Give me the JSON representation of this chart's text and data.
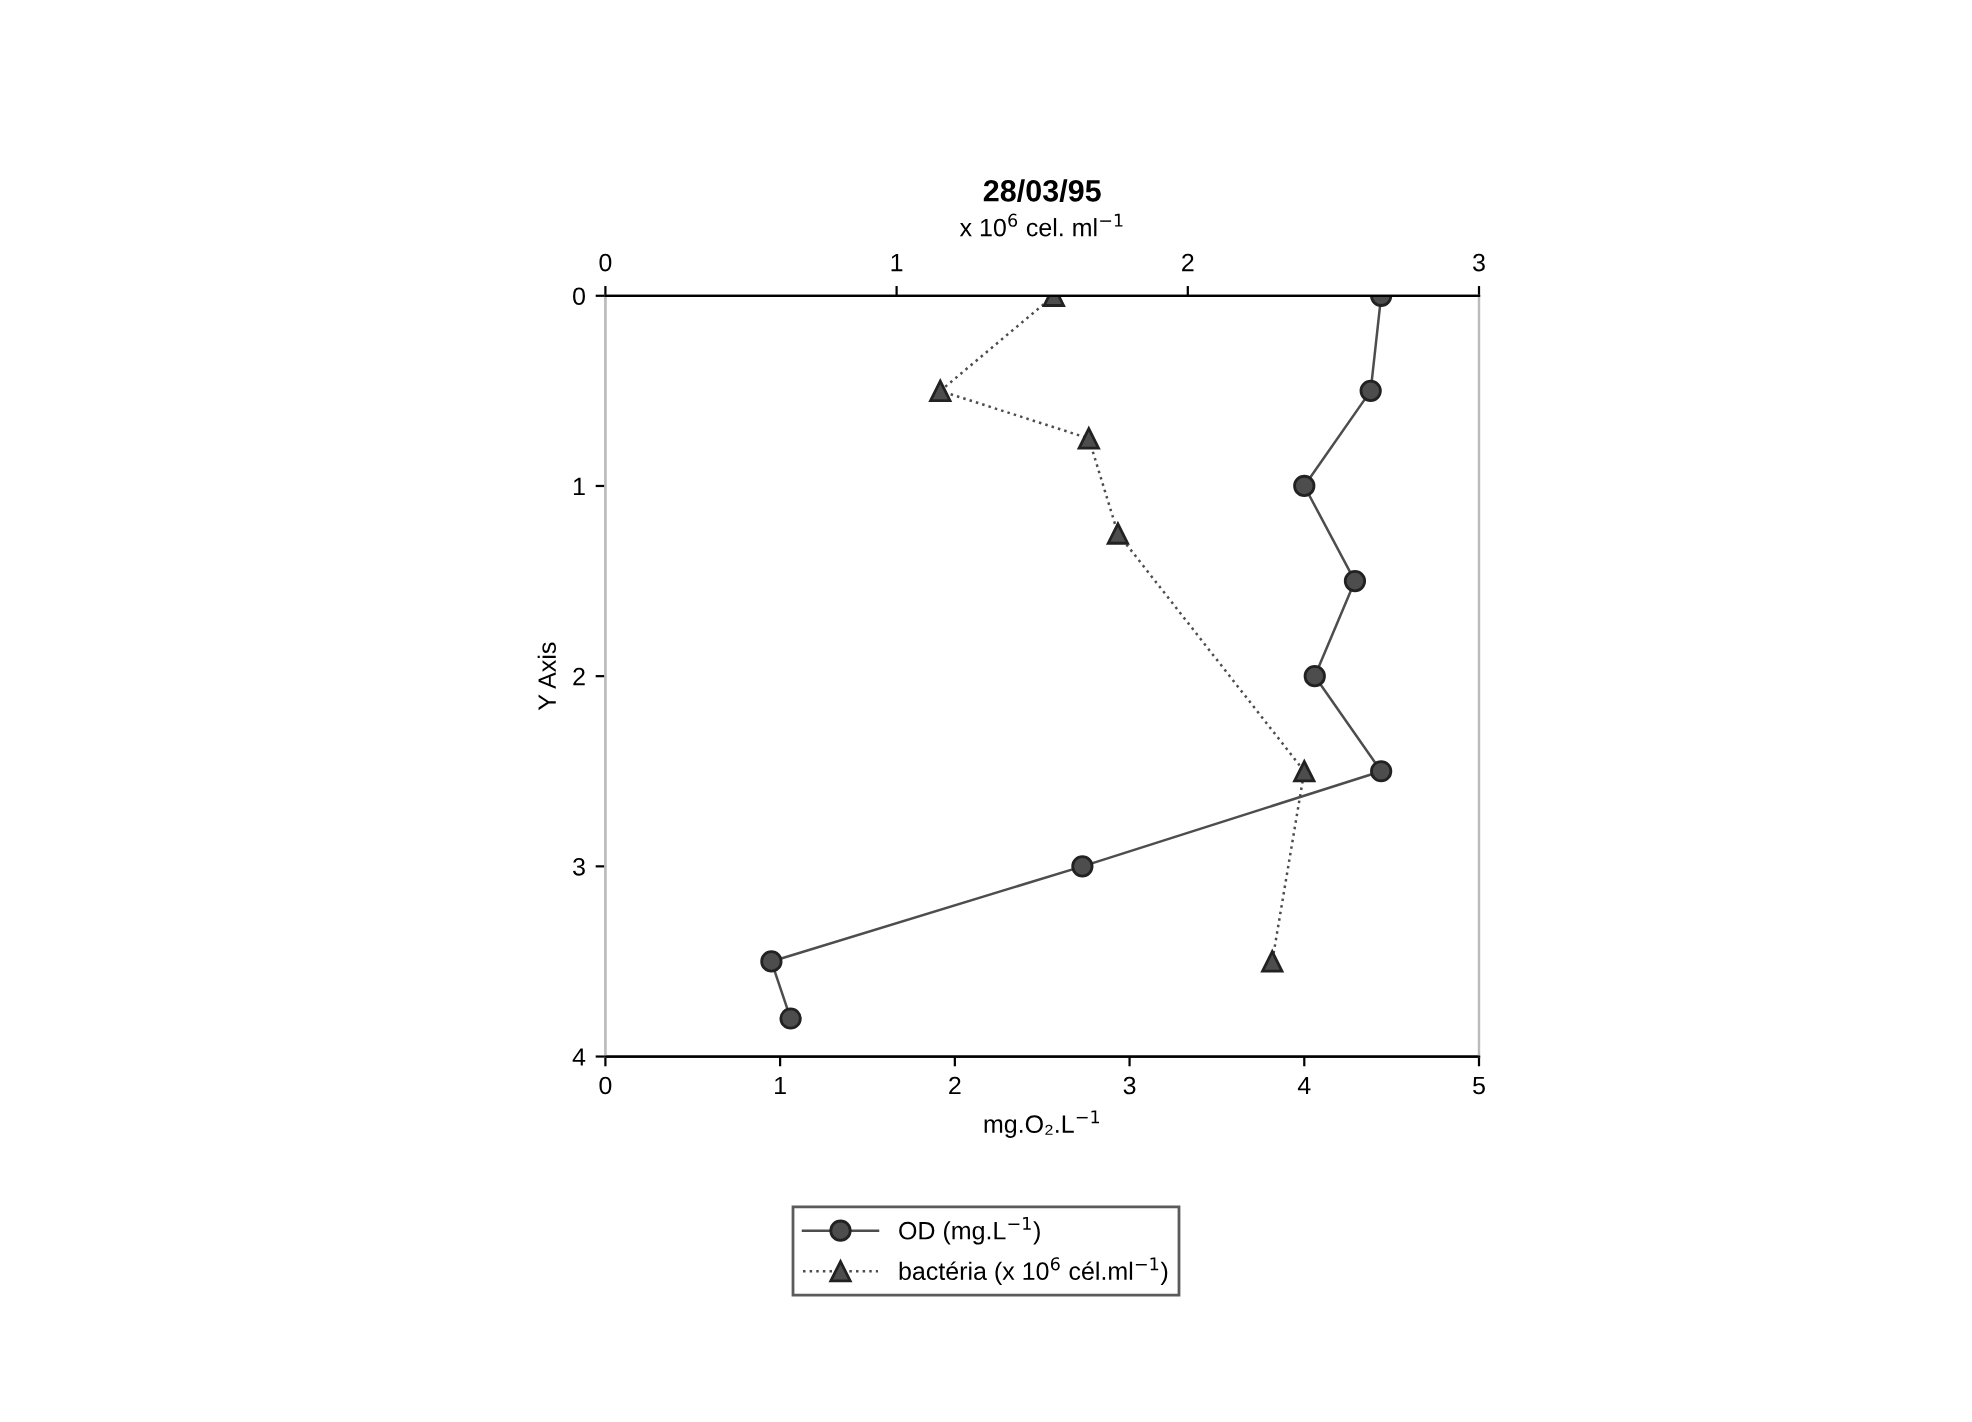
{
  "chart_data": {
    "type": "line",
    "title": "28/03/95",
    "xlabel": "mg.O₂.L$^{−1}$",
    "x2label": "x 10$^{6}$ cel. ml$^{−1}$",
    "ylabel": "Y Axis",
    "xlim": [
      0,
      5
    ],
    "xticks": [
      0,
      1,
      2,
      3,
      4,
      5
    ],
    "x2lim": [
      0,
      3
    ],
    "x2ticks": [
      0,
      1,
      2,
      3
    ],
    "ylim": [
      4,
      0
    ],
    "yticks": [
      0,
      1,
      2,
      3,
      4
    ],
    "series": [
      {
        "name": "OD (mg.L$^{−1}$)",
        "color": "#4d4d4d",
        "marker": "circle",
        "line_style": "solid",
        "x": [
          4.44,
          4.38,
          4.0,
          4.29,
          4.06,
          4.44,
          2.73,
          0.95,
          1.06
        ],
        "values": [
          0,
          0.5,
          1,
          1.5,
          2,
          2.5,
          3,
          3.5,
          3.8
        ]
      },
      {
        "name": "bactéria (x 10$^{6}$ cél.ml$^{−1}$)",
        "color": "#4d4d4d",
        "marker": "triangle",
        "line_style": "dotted",
        "axis": "x2",
        "x": [
          1.54,
          1.15,
          1.66,
          1.76,
          2.4,
          2.29
        ],
        "values": [
          0,
          0.5,
          0.75,
          1.25,
          2.5,
          3.5
        ]
      }
    ],
    "legend": "bottom",
    "grid": false
  }
}
